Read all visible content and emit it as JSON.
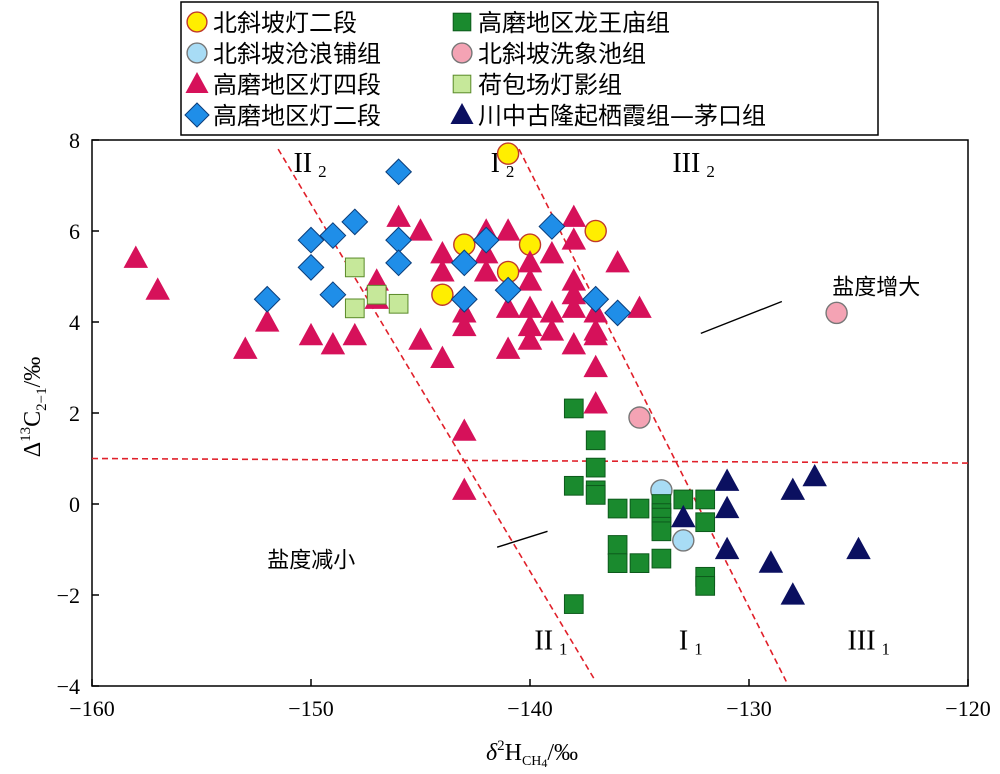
{
  "chart_data": {
    "type": "scatter",
    "xlabel": "δ²H_CH4/‰",
    "xlabel_main": "δ",
    "xlabel_sup": "2",
    "xlabel_H": "H",
    "xlabel_sub": "CH",
    "xlabel_sub2": "4",
    "xlabel_unit": "/‰",
    "ylabel_delta": "Δ",
    "ylabel_sup": "13",
    "ylabel_C": "C",
    "ylabel_sub": "2−1",
    "ylabel_unit": "/‰",
    "xlim": [
      -160,
      -120
    ],
    "ylim": [
      -4,
      8
    ],
    "x_ticks": [
      -160,
      -150,
      -140,
      -130,
      -120
    ],
    "x_tick_labels": [
      "−160",
      "−150",
      "−140",
      "−130",
      "−120"
    ],
    "y_ticks": [
      -4,
      -2,
      0,
      2,
      4,
      6,
      8
    ],
    "y_tick_labels": [
      "−4",
      "−2",
      "0",
      "2",
      "4",
      "6",
      "8"
    ],
    "regions": [
      {
        "roman": "II",
        "sub": "2",
        "x": -150.8,
        "y": 7.3
      },
      {
        "roman": "I",
        "sub": "2",
        "x": -141.8,
        "y": 7.3
      },
      {
        "roman": "III",
        "sub": "2",
        "x": -133.5,
        "y": 7.3
      },
      {
        "roman": "II",
        "sub": "1",
        "x": -139.8,
        "y": -3.2
      },
      {
        "roman": "I",
        "sub": "1",
        "x": -133.2,
        "y": -3.2
      },
      {
        "roman": "III",
        "sub": "1",
        "x": -125.5,
        "y": -3.2
      }
    ],
    "annotations": [
      {
        "text": "盐度增大",
        "x": -126.2,
        "y": 4.6,
        "line": [
          [
            -128.5,
            4.45
          ],
          [
            -132.2,
            3.75
          ]
        ]
      },
      {
        "text": "盐度减小",
        "x": -152.0,
        "y": -1.4,
        "line": [
          [
            -141.5,
            -0.95
          ],
          [
            -139.2,
            -0.6
          ]
        ]
      }
    ],
    "dashed_lines": [
      [
        [
          -151.5,
          7.8
        ],
        [
          -137.0,
          -3.9
        ]
      ],
      [
        [
          -140.5,
          7.8
        ],
        [
          -128.3,
          -3.9
        ]
      ],
      [
        [
          -160,
          1.0
        ],
        [
          -120,
          0.9
        ]
      ]
    ],
    "series": [
      {
        "name": "北斜坡灯二段",
        "marker": "circle",
        "color": "#ffee00",
        "points": [
          [
            -141,
            7.7
          ],
          [
            -143,
            5.7
          ],
          [
            -141,
            5.1
          ],
          [
            -140,
            5.7
          ],
          [
            -137,
            6.0
          ],
          [
            -144,
            4.6
          ]
        ]
      },
      {
        "name": "北斜坡沧浪铺组",
        "marker": "circle",
        "color": "#a8dcf5",
        "points": [
          [
            -134,
            0.3
          ],
          [
            -133,
            -0.8
          ]
        ]
      },
      {
        "name": "高磨地区灯四段",
        "marker": "triangle",
        "color": "#d6115a",
        "points": [
          [
            -158,
            5.4
          ],
          [
            -157,
            4.7
          ],
          [
            -153,
            3.4
          ],
          [
            -152,
            4.0
          ],
          [
            -150,
            3.7
          ],
          [
            -149,
            3.5
          ],
          [
            -148,
            3.7
          ],
          [
            -147,
            4.5
          ],
          [
            -147,
            4.9
          ],
          [
            -146,
            6.3
          ],
          [
            -145,
            6.0
          ],
          [
            -145,
            3.6
          ],
          [
            -144,
            5.5
          ],
          [
            -144,
            5.1
          ],
          [
            -144,
            3.2
          ],
          [
            -143,
            4.2
          ],
          [
            -143,
            3.9
          ],
          [
            -143,
            1.6
          ],
          [
            -143,
            0.3
          ],
          [
            -142,
            6.0
          ],
          [
            -142,
            5.5
          ],
          [
            -142,
            5.1
          ],
          [
            -141,
            6.0
          ],
          [
            -141,
            4.3
          ],
          [
            -141,
            3.4
          ],
          [
            -140,
            5.3
          ],
          [
            -140,
            4.9
          ],
          [
            -140,
            4.3
          ],
          [
            -140,
            3.9
          ],
          [
            -140,
            3.6
          ],
          [
            -139,
            5.5
          ],
          [
            -139,
            4.2
          ],
          [
            -139,
            3.8
          ],
          [
            -138,
            6.3
          ],
          [
            -138,
            5.8
          ],
          [
            -138,
            4.9
          ],
          [
            -138,
            4.6
          ],
          [
            -138,
            4.3
          ],
          [
            -138,
            3.5
          ],
          [
            -137,
            4.2
          ],
          [
            -137,
            3.8
          ],
          [
            -137,
            3.7
          ],
          [
            -137,
            3.0
          ],
          [
            -137,
            2.2
          ],
          [
            -136,
            5.3
          ],
          [
            -135,
            4.3
          ]
        ]
      },
      {
        "name": "高磨地区灯二段",
        "marker": "diamond",
        "color": "#1f8ee8",
        "points": [
          [
            -152,
            4.5
          ],
          [
            -150,
            5.8
          ],
          [
            -150,
            5.2
          ],
          [
            -149,
            5.9
          ],
          [
            -149,
            4.6
          ],
          [
            -148,
            6.2
          ],
          [
            -146,
            7.3
          ],
          [
            -146,
            5.8
          ],
          [
            -146,
            5.3
          ],
          [
            -143,
            5.3
          ],
          [
            -143,
            4.5
          ],
          [
            -142,
            5.8
          ],
          [
            -141,
            4.7
          ],
          [
            -139,
            6.1
          ],
          [
            -137,
            4.5
          ],
          [
            -136,
            4.2
          ]
        ]
      },
      {
        "name": "高磨地区龙王庙组",
        "marker": "square",
        "color": "#1a8a2e",
        "points": [
          [
            -138,
            2.1
          ],
          [
            -137,
            1.4
          ],
          [
            -137,
            0.8
          ],
          [
            -138,
            0.4
          ],
          [
            -137,
            0.3
          ],
          [
            -137,
            0.2
          ],
          [
            -136,
            -0.1
          ],
          [
            -135,
            -0.1
          ],
          [
            -134,
            0.0
          ],
          [
            -134,
            -0.2
          ],
          [
            -134,
            -0.3
          ],
          [
            -134,
            -0.5
          ],
          [
            -134,
            -0.6
          ],
          [
            -133,
            0.1
          ],
          [
            -132,
            0.1
          ],
          [
            -132,
            -0.4
          ],
          [
            -136,
            -0.9
          ],
          [
            -136,
            -1.3
          ],
          [
            -135,
            -1.3
          ],
          [
            -134,
            -1.2
          ],
          [
            -132,
            -1.6
          ],
          [
            -132,
            -1.8
          ],
          [
            -138,
            -2.2
          ]
        ]
      },
      {
        "name": "北斜坡洗象池组",
        "marker": "circle",
        "color": "#f4a3b4",
        "points": [
          [
            -135,
            1.9
          ],
          [
            -126,
            4.2
          ]
        ]
      },
      {
        "name": "荷包场灯影组",
        "marker": "square",
        "color": "#c6e89a",
        "points": [
          [
            -148,
            5.2
          ],
          [
            -148,
            4.3
          ],
          [
            -147,
            4.6
          ],
          [
            -146,
            4.4
          ]
        ]
      },
      {
        "name": "川中古隆起栖霞组—茅口组",
        "marker": "triangle",
        "color": "#0b1060",
        "points": [
          [
            -133,
            -0.3
          ],
          [
            -131,
            0.5
          ],
          [
            -131,
            -0.1
          ],
          [
            -131,
            -1.0
          ],
          [
            -129,
            -1.3
          ],
          [
            -128,
            0.3
          ],
          [
            -127,
            0.6
          ],
          [
            -128,
            -2.0
          ],
          [
            -125,
            -1.0
          ]
        ]
      }
    ],
    "legend": {
      "placement": "top-center",
      "columns": [
        [
          "北斜坡灯二段",
          "北斜坡沧浪铺组",
          "高磨地区灯四段",
          "高磨地区灯二段"
        ],
        [
          "高磨地区龙王庙组",
          "北斜坡洗象池组",
          "荷包场灯影组",
          "川中古隆起栖霞组—茅口组"
        ]
      ]
    },
    "grid": false
  }
}
